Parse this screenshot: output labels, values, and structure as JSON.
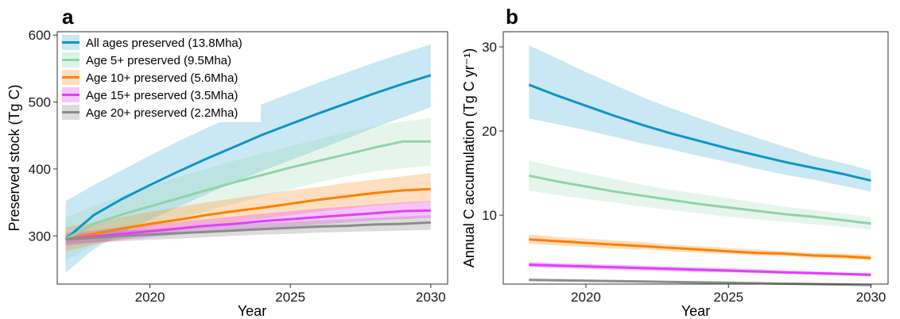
{
  "panel_a_letter": "a",
  "panel_b_letter": "b",
  "colors": {
    "all": "#0E94C8",
    "age5": "#8FD3A8",
    "age10": "#FF8000",
    "age15": "#E040FB",
    "age20": "#8C8C8C"
  },
  "chart_data": [
    {
      "type": "line",
      "panel": "a",
      "xlabel": "Year",
      "ylabel": "Preserved stock (Tg C)",
      "xlim": [
        2016.7,
        2030.6
      ],
      "ylim": [
        228,
        605
      ],
      "xticks": [
        2020,
        2025,
        2030
      ],
      "yticks": [
        300,
        400,
        500,
        600
      ],
      "legend_position": "top-left",
      "grid": false,
      "x": [
        2017,
        2018,
        2019,
        2020,
        2021,
        2022,
        2023,
        2024,
        2025,
        2026,
        2027,
        2028,
        2029,
        2030
      ],
      "series": [
        {
          "key": "all",
          "name": "All ages preserved (13.8Mha)",
          "values": [
            295,
            331,
            355,
            376,
            396,
            415,
            433,
            451,
            467,
            483,
            498,
            513,
            527,
            540
          ],
          "lower": [
            245,
            280,
            304,
            324,
            343,
            362,
            380,
            397,
            413,
            429,
            445,
            462,
            477,
            492
          ],
          "upper": [
            352,
            376,
            398,
            420,
            441,
            461,
            479,
            497,
            513,
            529,
            544,
            559,
            573,
            586
          ]
        },
        {
          "key": "age5",
          "name": "Age 5+ preserved (9.5Mha)",
          "values": [
            295,
            318,
            332,
            344,
            356,
            368,
            380,
            391,
            402,
            412,
            422,
            432,
            441,
            441
          ],
          "lower": [
            263,
            286,
            301,
            314,
            326,
            337,
            348,
            359,
            369,
            380,
            389,
            396,
            401,
            405
          ],
          "upper": [
            327,
            345,
            360,
            374,
            388,
            400,
            412,
            423,
            434,
            445,
            455,
            464,
            471,
            476
          ]
        },
        {
          "key": "age10",
          "name": "Age 10+ preserved (5.6Mha)",
          "values": [
            295,
            303,
            311,
            318,
            324,
            331,
            337,
            342,
            348,
            354,
            359,
            364,
            368,
            370
          ],
          "lower": [
            277,
            287,
            295,
            302,
            308,
            315,
            320,
            326,
            331,
            336,
            341,
            345,
            348,
            351
          ],
          "upper": [
            313,
            320,
            328,
            336,
            343,
            350,
            356,
            362,
            368,
            373,
            379,
            384,
            389,
            394
          ]
        },
        {
          "key": "age15",
          "name": "Age 15+ preserved (3.5Mha)",
          "values": [
            295,
            299,
            303,
            307,
            311,
            315,
            318,
            322,
            325,
            328,
            331,
            334,
            337,
            338
          ],
          "lower": [
            285,
            290,
            294,
            298,
            302,
            305,
            308,
            311,
            314,
            317,
            320,
            323,
            325,
            327
          ],
          "upper": [
            305,
            308,
            313,
            317,
            321,
            325,
            329,
            333,
            337,
            341,
            344,
            347,
            350,
            352
          ]
        },
        {
          "key": "age20",
          "name": "Age 20+ preserved (2.2Mha)",
          "values": [
            295,
            297,
            300,
            302,
            304,
            306,
            308,
            310,
            312,
            314,
            315,
            317,
            318,
            320
          ],
          "lower": [
            288,
            290,
            292,
            294,
            296,
            298,
            300,
            302,
            303,
            305,
            306,
            307,
            308,
            309
          ],
          "upper": [
            302,
            305,
            308,
            310,
            312,
            315,
            317,
            319,
            321,
            323,
            325,
            327,
            329,
            331
          ]
        }
      ]
    },
    {
      "type": "line",
      "panel": "b",
      "xlabel": "Year",
      "ylabel": "Annual C accumulation (Tg C yr⁻¹)",
      "xlim": [
        2017.1,
        2030.6
      ],
      "ylim": [
        1.8,
        31.8
      ],
      "xticks": [
        2020,
        2025,
        2030
      ],
      "yticks": [
        10,
        20,
        30
      ],
      "grid": false,
      "x": [
        2018,
        2019,
        2020,
        2021,
        2022,
        2023,
        2024,
        2025,
        2026,
        2027,
        2028,
        2029,
        2030
      ],
      "series": [
        {
          "key": "all",
          "name": "All ages preserved (13.8Mha)",
          "values": [
            25.5,
            24.2,
            23.0,
            21.8,
            20.7,
            19.7,
            18.8,
            17.9,
            17.1,
            16.3,
            15.6,
            14.9,
            14.1
          ],
          "lower": [
            21.5,
            20.8,
            20.1,
            19.3,
            18.5,
            17.8,
            17.0,
            16.3,
            15.5,
            14.8,
            14.2,
            13.5,
            12.8
          ],
          "upper": [
            30.2,
            28.6,
            27.0,
            25.5,
            24.0,
            22.7,
            21.5,
            20.3,
            19.2,
            18.1,
            17.0,
            16.2,
            15.3
          ]
        },
        {
          "key": "age5",
          "name": "Age 5+ preserved (9.5Mha)",
          "values": [
            14.7,
            14.0,
            13.4,
            12.8,
            12.3,
            11.8,
            11.3,
            10.9,
            10.5,
            10.1,
            9.8,
            9.4,
            9.0
          ],
          "lower": [
            12.9,
            12.4,
            11.9,
            11.5,
            11.0,
            10.6,
            10.2,
            9.8,
            9.5,
            9.2,
            8.9,
            8.6,
            8.3
          ],
          "upper": [
            16.5,
            15.7,
            15.0,
            14.3,
            13.6,
            13.0,
            12.5,
            12.0,
            11.5,
            11.0,
            10.6,
            10.2,
            9.8
          ]
        },
        {
          "key": "age10",
          "name": "Age 10+ preserved (5.6Mha)",
          "values": [
            7.1,
            6.9,
            6.7,
            6.5,
            6.3,
            6.1,
            5.9,
            5.7,
            5.5,
            5.4,
            5.2,
            5.1,
            4.9
          ],
          "lower": [
            6.6,
            6.4,
            6.2,
            6.0,
            5.9,
            5.7,
            5.5,
            5.4,
            5.2,
            5.1,
            4.9,
            4.8,
            4.6
          ],
          "upper": [
            7.7,
            7.4,
            7.2,
            7.0,
            6.8,
            6.5,
            6.3,
            6.1,
            5.9,
            5.7,
            5.5,
            5.4,
            5.3
          ]
        },
        {
          "key": "age15",
          "name": "Age 15+ preserved (3.5Mha)",
          "values": [
            4.1,
            4.0,
            3.9,
            3.8,
            3.7,
            3.6,
            3.5,
            3.4,
            3.3,
            3.2,
            3.1,
            3.0,
            2.9
          ],
          "lower": [
            3.8,
            3.7,
            3.6,
            3.5,
            3.4,
            3.3,
            3.2,
            3.2,
            3.1,
            3.0,
            2.9,
            2.8,
            2.7
          ],
          "upper": [
            4.4,
            4.3,
            4.2,
            4.1,
            4.0,
            3.9,
            3.8,
            3.7,
            3.6,
            3.4,
            3.3,
            3.2,
            3.1
          ]
        },
        {
          "key": "age20",
          "name": "Age 20+ preserved (2.2Mha)",
          "values": [
            2.3,
            2.25,
            2.2,
            2.15,
            2.1,
            2.05,
            2.0,
            1.95,
            1.9,
            1.85,
            1.8,
            1.75,
            1.7
          ],
          "lower": [
            2.15,
            2.1,
            2.05,
            2.0,
            1.95,
            1.9,
            1.85,
            1.8,
            1.75,
            1.7,
            1.65,
            1.6,
            1.55
          ],
          "upper": [
            2.45,
            2.4,
            2.35,
            2.3,
            2.25,
            2.2,
            2.15,
            2.1,
            2.05,
            2.0,
            1.95,
            1.9,
            1.85
          ]
        }
      ]
    }
  ]
}
